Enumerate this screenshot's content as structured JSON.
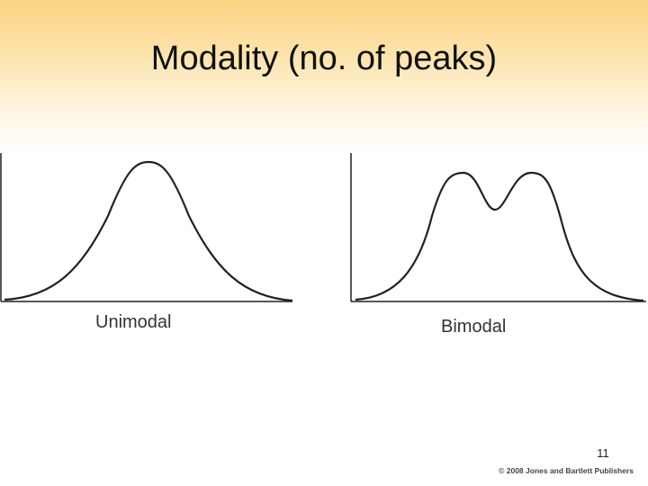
{
  "title": "Modality (no. of peaks)",
  "diagrams": [
    {
      "label": "Unimodal"
    },
    {
      "label": "Bimodal"
    }
  ],
  "page_number": "11",
  "footer": "© 2008 Jones and Bartlett Publishers"
}
